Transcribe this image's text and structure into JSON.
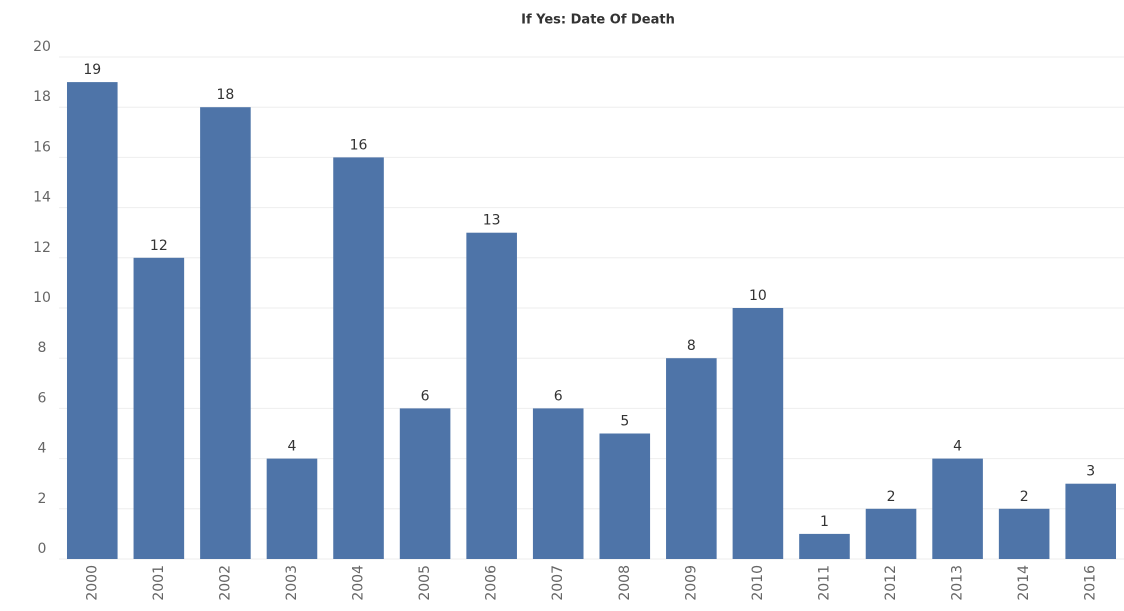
{
  "chart_data": {
    "type": "bar",
    "title": "If Yes: Date Of Death",
    "categories": [
      "2000",
      "2001",
      "2002",
      "2003",
      "2004",
      "2005",
      "2006",
      "2007",
      "2008",
      "2009",
      "2010",
      "2011",
      "2012",
      "2013",
      "2014",
      "2016"
    ],
    "values": [
      19,
      12,
      18,
      4,
      16,
      6,
      13,
      6,
      5,
      8,
      10,
      1,
      2,
      4,
      2,
      3
    ],
    "color": "#4e74a8",
    "ylim": [
      0,
      20
    ],
    "yticks": [
      0,
      2,
      4,
      6,
      8,
      10,
      12,
      14,
      16,
      18,
      20
    ],
    "grid": true
  }
}
